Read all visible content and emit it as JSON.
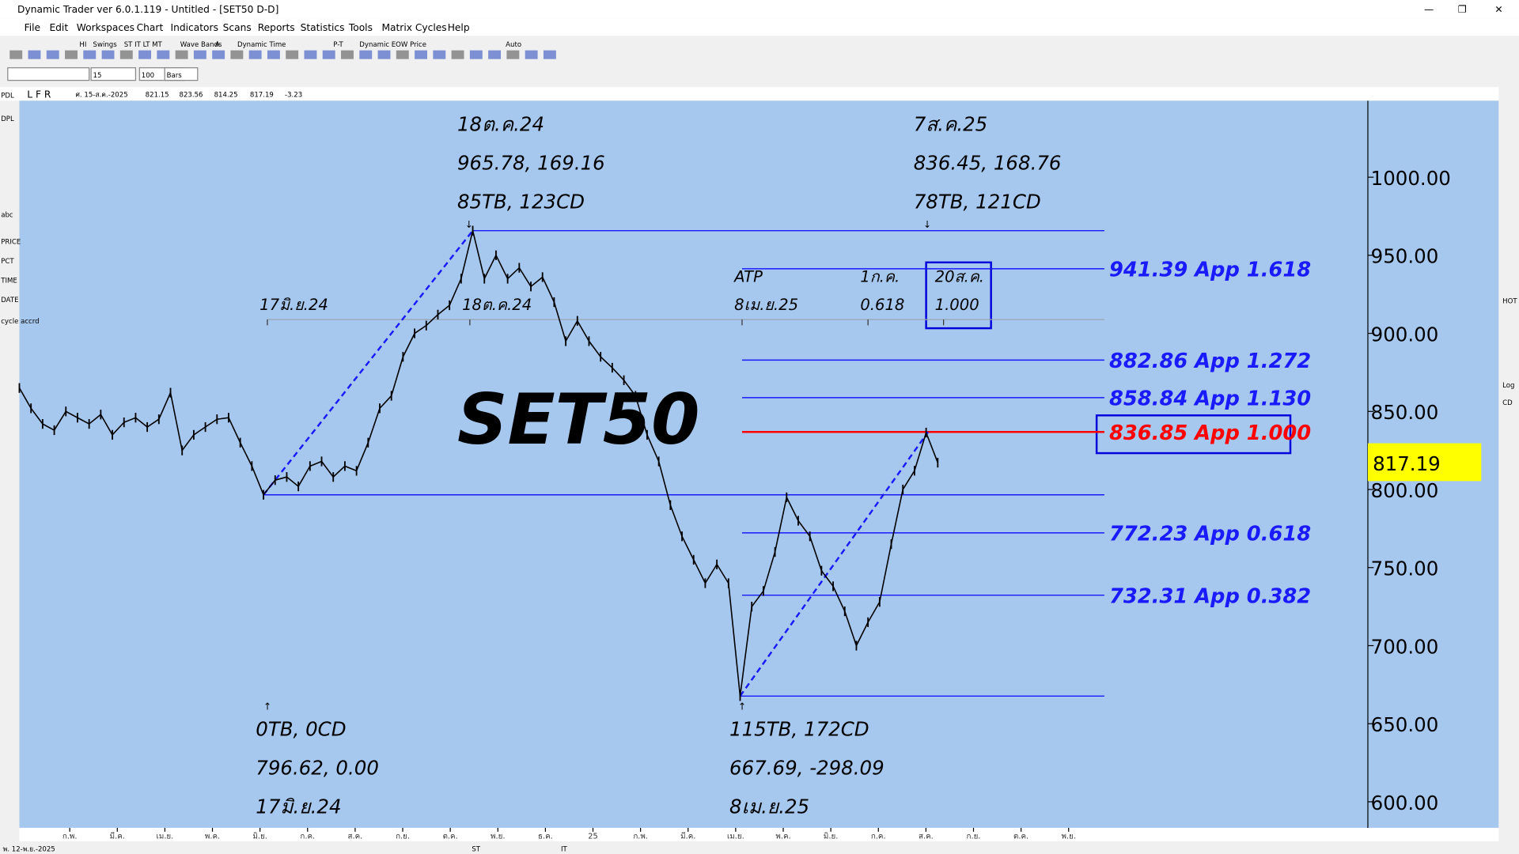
{
  "window": {
    "title": "Dynamic Trader ver 6.0.1.119 - Untitled - [SET50 D-D]",
    "menu": [
      "File",
      "Edit",
      "Workspaces",
      "Chart",
      "Indicators",
      "Scans",
      "Reports",
      "Statistics",
      "Tools",
      "Matrix Cycles",
      "Help"
    ],
    "toolbar": [
      "HI",
      "Swings",
      "ST IT LT MT",
      "Wave Bands",
      "A",
      "Dynamic Time",
      "P-T",
      "Dynamic EOW Price",
      "Auto"
    ],
    "inputs": [
      "15",
      "100",
      "Bars"
    ],
    "info_bar": {
      "flags": "L F R",
      "date": "ศ. 15-ส.ค.-2025",
      "open": "821.15",
      "high": "823.56",
      "low": "814.25",
      "close": "817.19",
      "change": "-3.23"
    },
    "left_tools": [
      "PDL",
      "DPL",
      "abc",
      "PRICE",
      "PCT",
      "TIME",
      "DATE",
      "cycle accrd"
    ],
    "right_tools": [
      "HOT",
      "Log",
      "CD"
    ],
    "status": {
      "date": "พ. 12-พ.ย.-2025",
      "st": "ST",
      "it": "IT"
    }
  },
  "chart_data": {
    "type": "line",
    "title": "SET50",
    "price": {
      "color": "#000000",
      "values": [
        865,
        852,
        842,
        838,
        850,
        846,
        842,
        848,
        835,
        843,
        846,
        840,
        845,
        862,
        825,
        835,
        840,
        845,
        846,
        830,
        815,
        796.62,
        806,
        808,
        802,
        815,
        818,
        808,
        815,
        812,
        830,
        852,
        860,
        885,
        900,
        905,
        912,
        918,
        935,
        965.78,
        935,
        950,
        935,
        942,
        930,
        936,
        920,
        895,
        908,
        895,
        885,
        878,
        870,
        860,
        835,
        818,
        790,
        770,
        755,
        740,
        752,
        740,
        667.69,
        725,
        735,
        760,
        795,
        780,
        770,
        748,
        738,
        722,
        700,
        715,
        728,
        765,
        800,
        812,
        836.45,
        817.19
      ]
    },
    "ylim": [
      583.3,
      1049
    ],
    "yticks": [
      {
        "value": 600,
        "label": "600.00"
      },
      {
        "value": 650,
        "label": "650.00"
      },
      {
        "value": 700,
        "label": "700.00"
      },
      {
        "value": 750,
        "label": "750.00"
      },
      {
        "value": 800,
        "label": "800.00"
      },
      {
        "value": 850,
        "label": "850.00"
      },
      {
        "value": 900,
        "label": "900.00"
      },
      {
        "value": 950,
        "label": "950.00"
      },
      {
        "value": 1000,
        "label": "1000.00"
      }
    ],
    "x_labels": [
      "ก.พ.",
      "มี.ค.",
      "เม.ย.",
      "พ.ค.",
      "มิ.ย.",
      "ก.ค.",
      "ส.ค.",
      "ก.ย.",
      "ต.ค.",
      "พ.ย.",
      "ธ.ค.",
      "25",
      "ก.พ.",
      "มี.ค.",
      "เม.ย.",
      "พ.ค.",
      "มิ.ย.",
      "ก.ค.",
      "ส.ค.",
      "ก.ย.",
      "ต.ค.",
      "พ.ย."
    ],
    "levels": [
      {
        "value": 941.39,
        "label": "941.39 App 1.618",
        "color": "#1a1aff"
      },
      {
        "value": 882.86,
        "label": "882.86 App 1.272",
        "color": "#1a1aff"
      },
      {
        "value": 858.84,
        "label": "858.84 App 1.130",
        "color": "#1a1aff"
      },
      {
        "value": 836.85,
        "label": "836.85 App 1.000",
        "color": "#ff0000"
      },
      {
        "value": 772.23,
        "label": "772.23 App 0.618",
        "color": "#1a1aff"
      },
      {
        "value": 732.31,
        "label": "732.31 App 0.382",
        "color": "#1a1aff"
      }
    ],
    "last_price": {
      "value": 817.19,
      "label": "817.19"
    },
    "annotations": {
      "high": [
        "18ต.ค.24",
        "965.78, 169.16",
        "85TB, 123CD"
      ],
      "recent": [
        "7ส.ค.25",
        "836.45, 168.76",
        "78TB, 121CD"
      ],
      "start": [
        "0TB, 0CD",
        "796.62, 0.00",
        "17มิ.ย.24"
      ],
      "low": [
        "115TB, 172CD",
        "667.69, -298.09",
        "8เม.ย.25"
      ],
      "time_labels": [
        "17มิ.ย.24",
        "18ต.ค.24",
        "ATP",
        "8เม.ย.25",
        "1ก.ค.",
        "0.618",
        "20ส.ค.",
        "1.000"
      ]
    }
  }
}
